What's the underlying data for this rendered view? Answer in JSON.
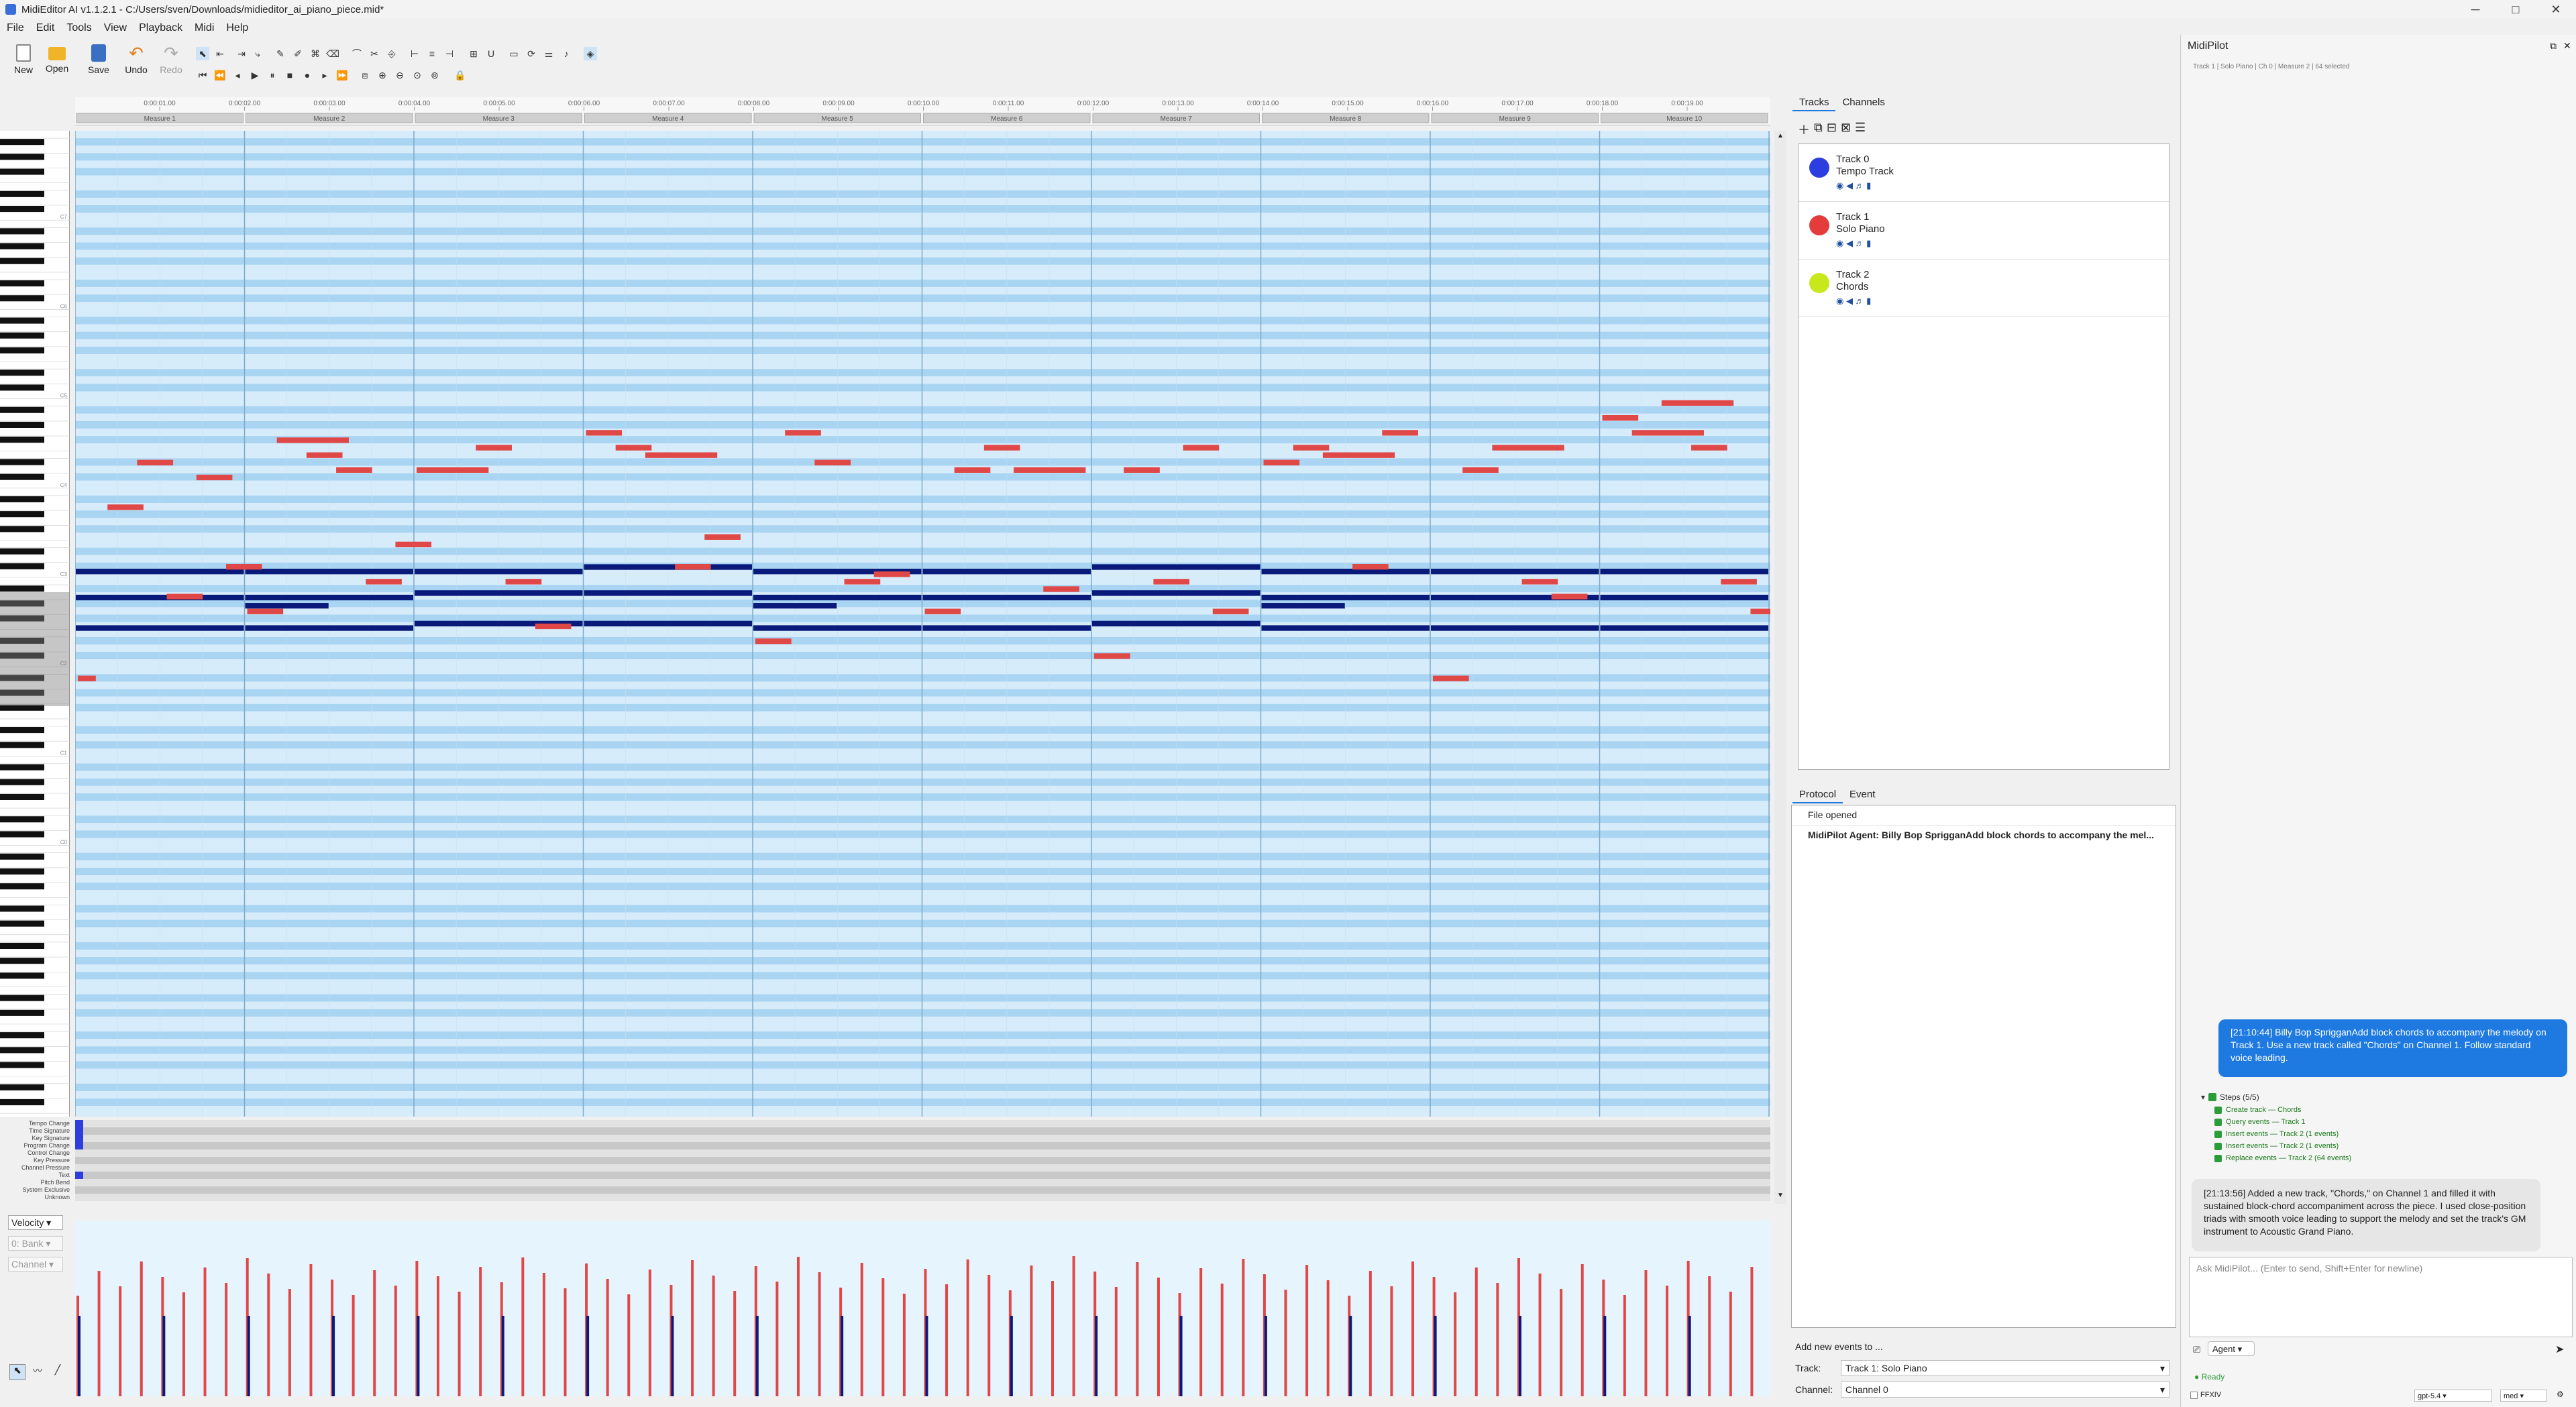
{
  "window": {
    "title": "MidiEditor AI v1.1.2.1 - C:/Users/sven/Downloads/midieditor_ai_piano_piece.mid*",
    "minimize": "─",
    "maximize": "□",
    "close": "✕"
  },
  "menu": [
    "File",
    "Edit",
    "Tools",
    "View",
    "Playback",
    "Midi",
    "Help"
  ],
  "toolbar": {
    "new": "New",
    "open": "Open",
    "save": "Save",
    "undo": "Undo",
    "redo": "Redo"
  },
  "timeline": {
    "times": [
      "0:00:01.00",
      "0:00:02.00",
      "0:00:03.00",
      "0:00:04.00",
      "0:00:05.00",
      "0:00:06.00",
      "0:00:07.00",
      "0:00:08.00",
      "0:00:09.00",
      "0:00:10.00",
      "0:00:11.00",
      "0:00:12.00",
      "0:00:13.00",
      "0:00:14.00",
      "0:00:15.00",
      "0:00:16.00",
      "0:00:17.00",
      "0:00:18.00",
      "0:00:19.00"
    ],
    "measures": [
      "Measure 1",
      "Measure 2",
      "Measure 3",
      "Measure 4",
      "Measure 5",
      "Measure 6",
      "Measure 7",
      "Measure 8",
      "Measure 9",
      "Measure 10"
    ]
  },
  "piano": {
    "octave_labels": [
      "C7",
      "C6",
      "C5",
      "C4",
      "C3",
      "C2",
      "C1",
      "C0"
    ]
  },
  "misc_labels": [
    "Tempo Change",
    "Time Signature",
    "Key Signature",
    "Program Change",
    "Control Change",
    "Key Pressure",
    "Channel Pressure",
    "Text",
    "Pitch Bend",
    "System Exclusive",
    "Unknown"
  ],
  "misc_controls": {
    "velocity": "Velocity",
    "bank": "0: Bank",
    "channel": "Channel"
  },
  "side_tabs": {
    "tracks": "Tracks",
    "channels": "Channels"
  },
  "tracks": [
    {
      "name": "Track 0",
      "sub": "Tempo Track",
      "color": "#2c3ee0"
    },
    {
      "name": "Track 1",
      "sub": "Solo Piano",
      "color": "#e43b3b"
    },
    {
      "name": "Track 2",
      "sub": "Chords",
      "color": "#c8e81c"
    }
  ],
  "protocol_tabs": {
    "protocol": "Protocol",
    "event": "Event"
  },
  "protocol_items": [
    "File opened",
    "MidiPilot Agent: Billy Bop SprigganAdd block chords to accompany the mel..."
  ],
  "add_events": {
    "label": "Add new events to ...",
    "track_label": "Track:",
    "track_value": "Track 1: Solo Piano",
    "channel_label": "Channel:",
    "channel_value": "Channel 0"
  },
  "pilot": {
    "title": "MidiPilot",
    "status": "Track 1 | Solo Piano | Ch 0 | Measure 2 | 64 selected",
    "user_msg": "[21:10:44] Billy Bop SprigganAdd block chords to accompany the melody on Track 1. Use a new track called \"Chords\" on Channel 1. Follow standard voice leading.",
    "steps_title": "Steps (5/5)",
    "steps": [
      "Create track — Chords",
      "Query events — Track 1",
      "Insert events — Track 2 (1 events)",
      "Insert events — Track 2 (1 events)",
      "Replace events — Track 2 (64 events)"
    ],
    "agent_msg": "[21:13:56] Added a new track, \"Chords,\" on Channel 1 and filled it with sustained block-chord accompaniment across the piece. I used close-position triads with smooth voice leading to support the melody and set the track's GM instrument to Acoustic Grand Piano.",
    "input_placeholder": "Ask MidiPilot... (Enter to send, Shift+Enter for newline)",
    "mode": "Agent",
    "send": "➤",
    "ready": "Ready",
    "ffxiv": "FFXIV",
    "model": "gpt-5.4",
    "effort": "med"
  },
  "colors": {
    "melody": "#e04848",
    "chords": "#0a1a7a",
    "grid_light": "#d6ecfb",
    "grid_dark": "#a9d5f3",
    "accent": "#1e7ae0"
  }
}
